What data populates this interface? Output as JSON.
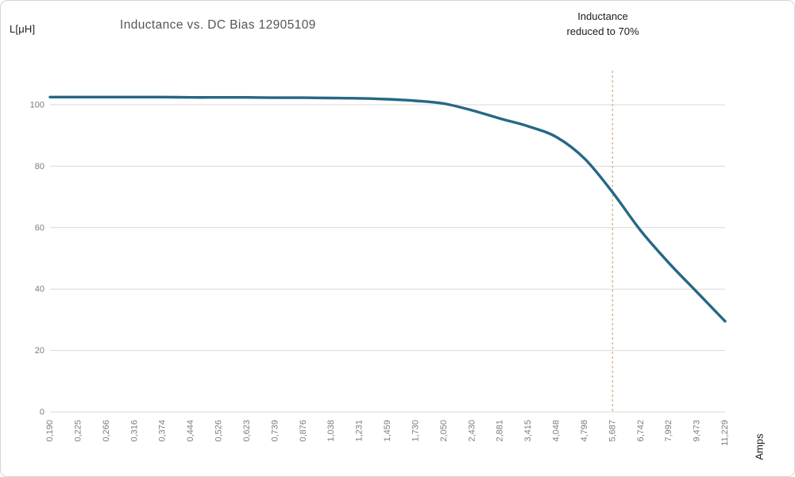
{
  "chart_data": {
    "type": "line",
    "title": "Inductance vs. DC Bias 12905109",
    "y_axis_label": "L[μH]",
    "x_axis_label": "Amps",
    "categories": [
      "0,190",
      "0,225",
      "0,266",
      "0,316",
      "0,374",
      "0,444",
      "0,526",
      "0,623",
      "0,739",
      "0,876",
      "1,038",
      "1,231",
      "1,459",
      "1,730",
      "2,050",
      "2,430",
      "2,881",
      "3,415",
      "4,048",
      "4,798",
      "5,687",
      "6,742",
      "7,992",
      "9,473",
      "11,229"
    ],
    "values": [
      102.5,
      102.5,
      102.5,
      102.5,
      102.5,
      102.4,
      102.4,
      102.4,
      102.3,
      102.3,
      102.2,
      102.1,
      101.8,
      101.3,
      100.4,
      98.2,
      95.5,
      93.0,
      89.5,
      82.5,
      71.5,
      59.0,
      48.5,
      39.0,
      29.5
    ],
    "ylim": [
      0,
      111
    ],
    "yticks": [
      0,
      20,
      40,
      60,
      80,
      100
    ],
    "ytick_labels": [
      "0",
      "20",
      "40",
      "60",
      "80",
      "100"
    ],
    "grid": "horizontal",
    "legend": "none",
    "x_labels_rotated_degrees": -90,
    "annotation": {
      "lines": [
        "Inductance",
        "reduced to 70%"
      ],
      "full_text": "Inductance reduced to 70%",
      "marker": "dashed-vertical-line",
      "at_category": "5,687",
      "at_category_index": 20
    },
    "colors": {
      "series_line": "#256884",
      "annotation_line": "#d9b48f",
      "gridline": "#d9d9d9",
      "tick_label": "#7d7d7d",
      "title_text": "#555555",
      "annotation_text": "#1a1a1a",
      "background": "#ffffff"
    }
  }
}
